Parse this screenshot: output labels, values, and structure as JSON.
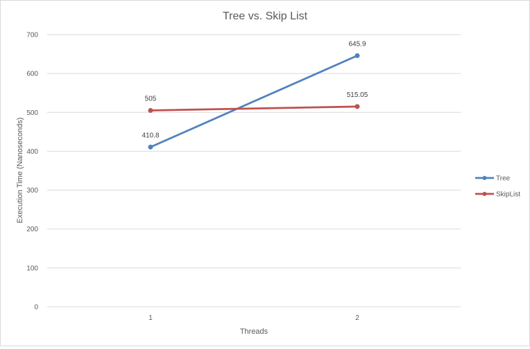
{
  "chart_data": {
    "type": "line",
    "title": "Tree vs. Skip List",
    "xlabel": "Threads",
    "ylabel": "Execution Time (Nanoseconds)",
    "categories": [
      "1",
      "2"
    ],
    "ylim": [
      0,
      700
    ],
    "yticks": [
      0,
      100,
      200,
      300,
      400,
      500,
      600,
      700
    ],
    "grid": true,
    "legend_position": "right",
    "series": [
      {
        "name": "Tree",
        "values": [
          410.8,
          645.9
        ],
        "labels": [
          "410.8",
          "645.9"
        ],
        "color": "#4f81bd"
      },
      {
        "name": "SkipList",
        "values": [
          505,
          515.05
        ],
        "labels": [
          "505",
          "515.05"
        ],
        "color": "#c0504d"
      }
    ]
  }
}
